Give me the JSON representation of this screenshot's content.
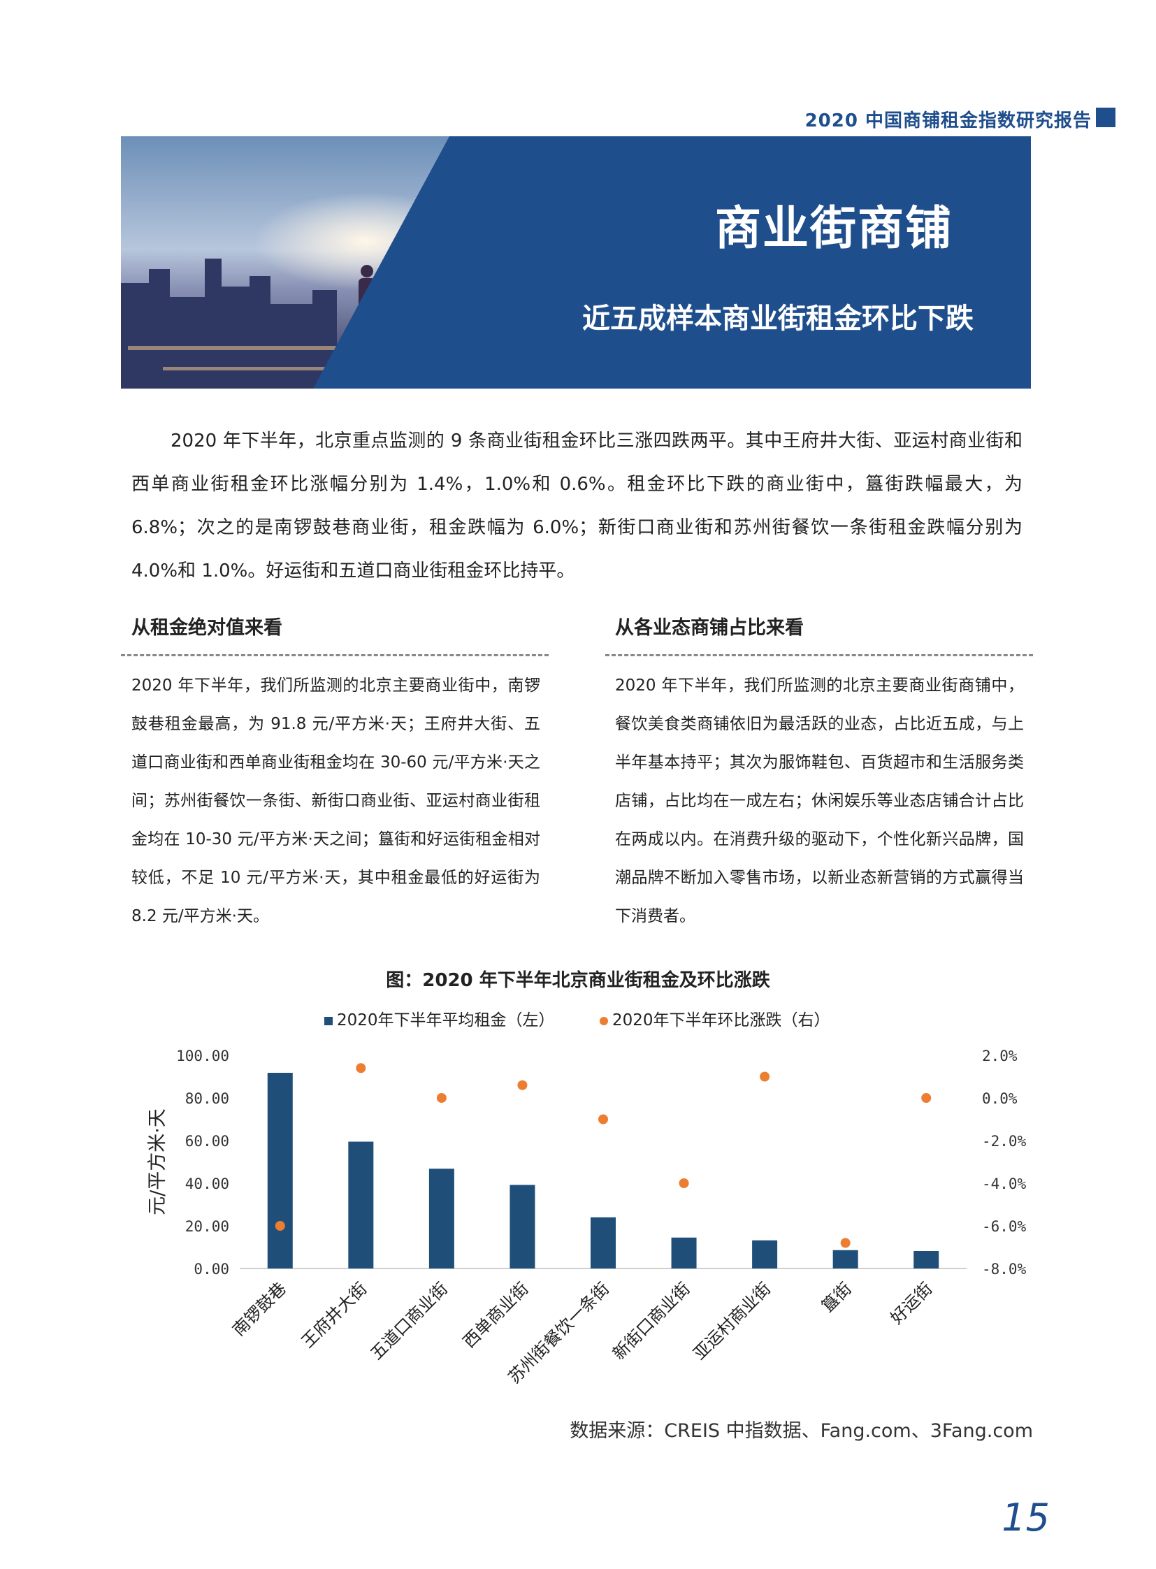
{
  "header": {
    "report_title": "2020 中国商铺租金指数研究报告"
  },
  "banner": {
    "title": "商业街商铺",
    "subtitle": "近五成样本商业街租金环比下跌"
  },
  "intro": "2020 年下半年，北京重点监测的 9 条商业街租金环比三涨四跌两平。其中王府井大街、亚运村商业街和西单商业街租金环比涨幅分别为 1.4%，1.0%和 0.6%。租金环比下跌的商业街中，簋街跌幅最大，为 6.8%；次之的是南锣鼓巷商业街，租金跌幅为 6.0%；新街口商业街和苏州街餐饮一条街租金跌幅分别为 4.0%和 1.0%。好运街和五道口商业街租金环比持平。",
  "left_col": {
    "heading": "从租金绝对值来看",
    "text": "2020 年下半年，我们所监测的北京主要商业街中，南锣鼓巷租金最高，为 91.8 元/平方米·天；王府井大街、五道口商业街和西单商业街租金均在 30-60 元/平方米·天之间；苏州街餐饮一条街、新街口商业街、亚运村商业街租金均在 10-30 元/平方米·天之间；簋街和好运街租金相对较低，不足 10 元/平方米·天，其中租金最低的好运街为 8.2 元/平方米·天。"
  },
  "right_col": {
    "heading": "从各业态商铺占比来看",
    "text": "2020 年下半年，我们所监测的北京主要商业街商铺中，餐饮美食类商铺依旧为最活跃的业态，占比近五成，与上半年基本持平；其次为服饰鞋包、百货超市和生活服务类店铺，占比均在一成左右；休闲娱乐等业态店铺合计占比在两成以内。在消费升级的驱动下，个性化新兴品牌，国潮品牌不断加入零售市场，以新业态新营销的方式赢得当下消费者。"
  },
  "chart_data": {
    "type": "bar",
    "title": "图：2020 年下半年北京商业街租金及环比涨跌",
    "categories": [
      "南锣鼓巷",
      "王府井大街",
      "五道口商业街",
      "西单商业街",
      "苏州街餐饮一条街",
      "新街口商业街",
      "亚运村商业街",
      "簋街",
      "好运街"
    ],
    "series": [
      {
        "name": "2020年下半年平均租金（左）",
        "type": "bar",
        "axis": "left",
        "color": "#1f4e79",
        "values": [
          91.8,
          59.5,
          46.8,
          39.2,
          24.0,
          14.5,
          13.2,
          8.6,
          8.2
        ]
      },
      {
        "name": "2020年下半年环比涨跌（右）",
        "type": "scatter",
        "axis": "right",
        "color": "#ed7d31",
        "values": [
          -6.0,
          1.4,
          0.0,
          0.6,
          -1.0,
          -4.0,
          1.0,
          -6.8,
          0.0
        ]
      }
    ],
    "ylabel": "元/平方米·天",
    "ylim": [
      0,
      100
    ],
    "y_ticks": [
      "100.00",
      "80.00",
      "60.00",
      "40.00",
      "20.00",
      "0.00"
    ],
    "y2lim": [
      -8,
      2
    ],
    "y2_ticks": [
      "2.0%",
      "0.0%",
      "-2.0%",
      "-4.0%",
      "-6.0%",
      "-8.0%"
    ],
    "legend_position": "top"
  },
  "source": "数据来源：CREIS 中指数据、Fang.com、3Fang.com",
  "page_number": "15",
  "colors": {
    "brand_blue": "#1f4e8c",
    "bar": "#1f4e79",
    "dot": "#ed7d31"
  }
}
